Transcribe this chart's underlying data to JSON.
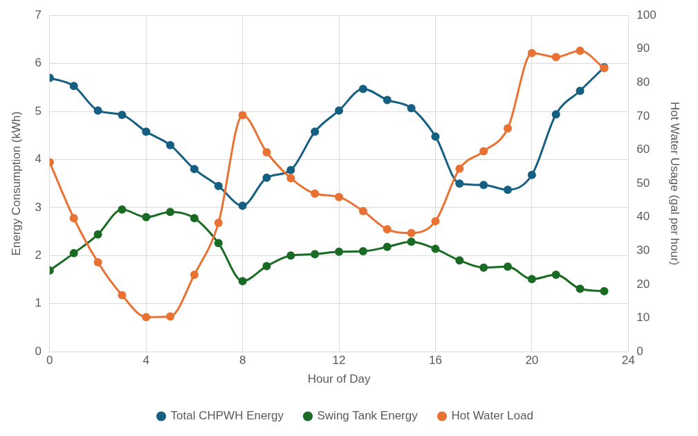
{
  "chart_data": {
    "type": "line",
    "xlabel": "Hour of Day",
    "ylabel": "Energy Consumption (kWh)",
    "y2label": "Hot Water Usage (gal per hour)",
    "x": [
      0,
      1,
      2,
      3,
      4,
      5,
      6,
      7,
      8,
      9,
      10,
      11,
      12,
      13,
      14,
      15,
      16,
      17,
      18,
      19,
      20,
      21,
      22,
      23
    ],
    "series": [
      {
        "name": "Total CHPWH Energy",
        "color": "#156082",
        "values": [
          5.7,
          5.53,
          5.02,
          4.93,
          4.58,
          4.3,
          3.8,
          3.45,
          3.04,
          3.62,
          3.78,
          4.58,
          5.02,
          5.47,
          5.24,
          5.07,
          4.48,
          3.5,
          3.47,
          3.37,
          3.68,
          4.94,
          5.43,
          5.92
        ]
      },
      {
        "name": "Swing Tank Energy",
        "color": "#196b24",
        "values": [
          1.69,
          2.05,
          2.44,
          2.96,
          2.8,
          2.91,
          2.78,
          2.26,
          1.47,
          1.78,
          2.0,
          2.03,
          2.08,
          2.09,
          2.18,
          2.29,
          2.14,
          1.9,
          1.75,
          1.77,
          1.51,
          1.6,
          1.31,
          1.26
        ]
      },
      {
        "name": "Hot Water Load",
        "color": "#e97132",
        "axis": "y2",
        "values": [
          56.3,
          39.7,
          26.6,
          16.8,
          10.3,
          10.5,
          22.9,
          38.3,
          70.3,
          59.3,
          51.6,
          47.0,
          46.0,
          41.8,
          36.4,
          35.3,
          38.8,
          54.4,
          59.6,
          66.4,
          88.8,
          87.6,
          89.5,
          84.3
        ]
      }
    ],
    "xlim": [
      0,
      24
    ],
    "xticks": [
      0,
      4,
      8,
      12,
      16,
      20,
      24
    ],
    "ylim": [
      0,
      7
    ],
    "yticks": [
      0,
      1,
      2,
      3,
      4,
      5,
      6,
      7
    ],
    "y2lim": [
      0,
      100
    ],
    "y2ticks": [
      0,
      10,
      20,
      30,
      40,
      50,
      60,
      70,
      80,
      90,
      100
    ],
    "grid": true,
    "legend": "bottom",
    "marker": "circle",
    "line_style": "solid"
  }
}
